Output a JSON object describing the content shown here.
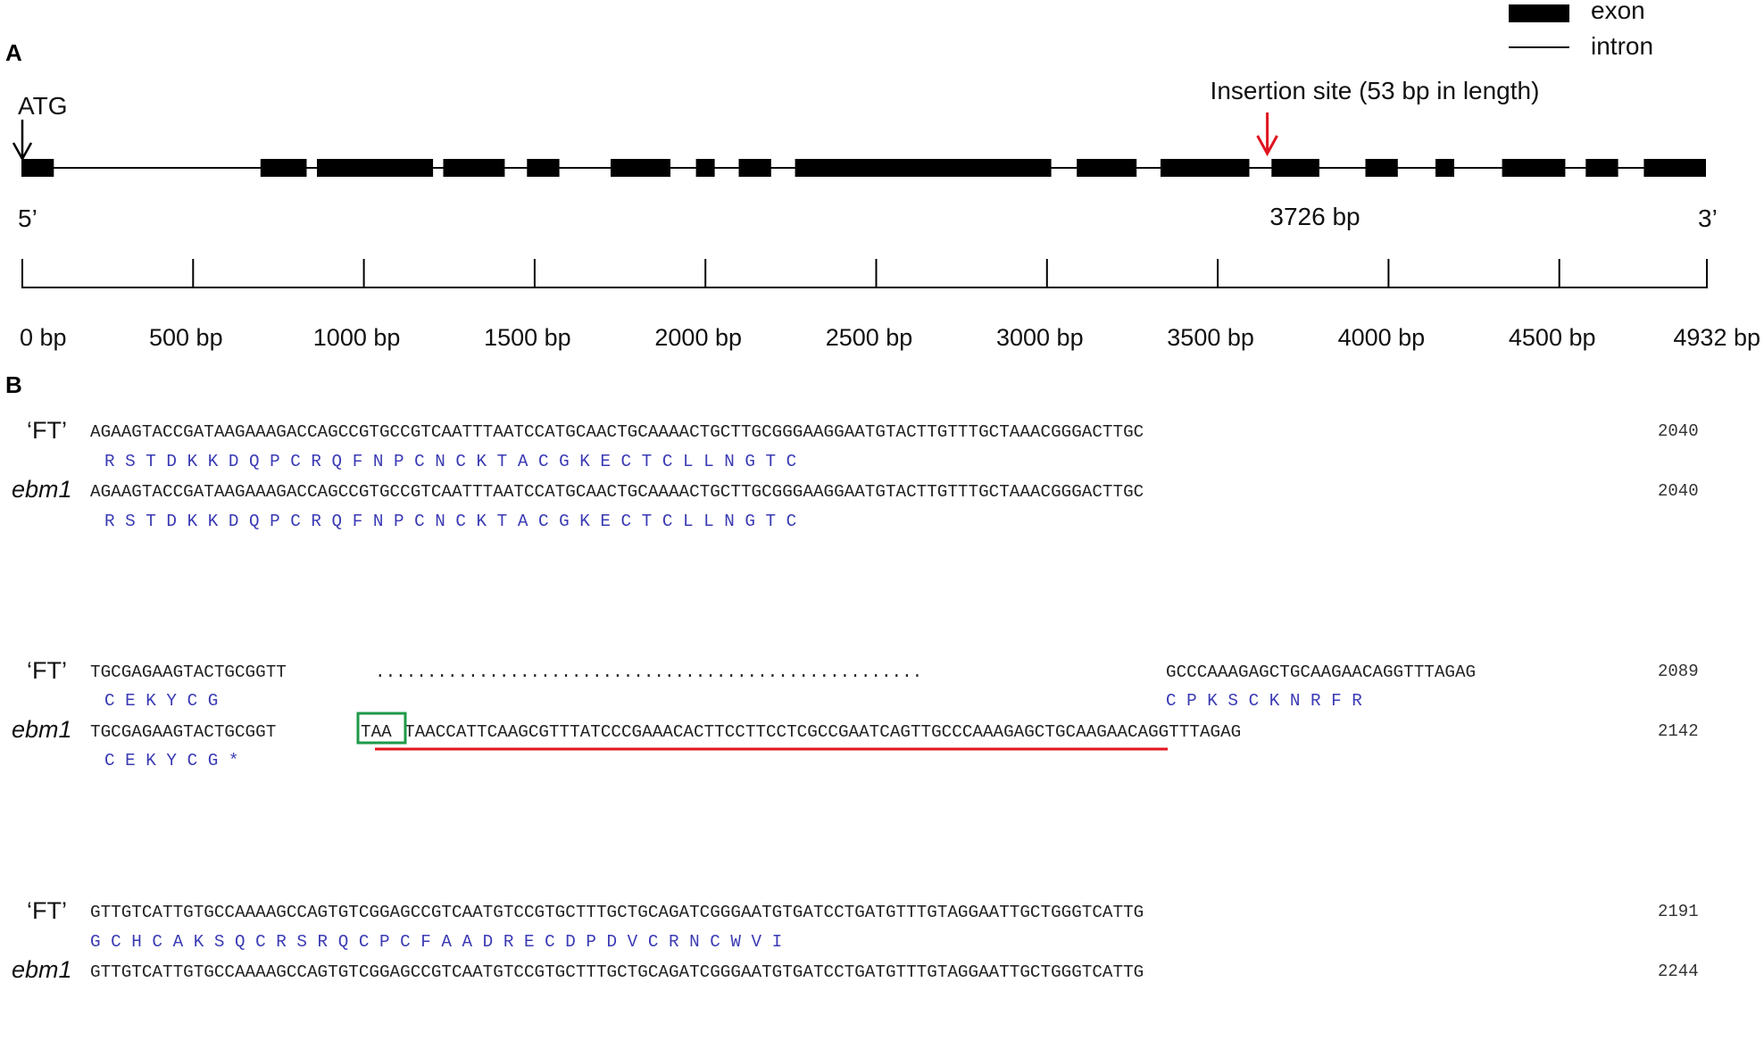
{
  "panels": {
    "a": "A",
    "b": "B"
  },
  "legend": {
    "exon": "exon",
    "intron": "intron"
  },
  "gene": {
    "atg_label": "ATG",
    "five_prime": "5’",
    "three_prime": "3’",
    "insertion_label": "Insertion site (53 bp in length)",
    "insertion_position": "3726 bp",
    "insertion_bp": 3726,
    "length_bp": 4932,
    "exons_bp": [
      [
        0,
        95
      ],
      [
        700,
        835
      ],
      [
        865,
        1205
      ],
      [
        1235,
        1415
      ],
      [
        1480,
        1575
      ],
      [
        1725,
        1900
      ],
      [
        1975,
        2030
      ],
      [
        2100,
        2195
      ],
      [
        2265,
        3015
      ],
      [
        3090,
        3265
      ],
      [
        3335,
        3595
      ],
      [
        3660,
        3800
      ],
      [
        3935,
        4030
      ],
      [
        4140,
        4195
      ],
      [
        4335,
        4520
      ],
      [
        4580,
        4675
      ],
      [
        4750,
        4932
      ]
    ]
  },
  "scale": {
    "ticks": [
      {
        "bp": 0,
        "label": "0 bp"
      },
      {
        "bp": 500,
        "label": "500 bp"
      },
      {
        "bp": 1000,
        "label": "1000 bp"
      },
      {
        "bp": 1500,
        "label": "1500 bp"
      },
      {
        "bp": 2000,
        "label": "2000 bp"
      },
      {
        "bp": 2500,
        "label": "2500 bp"
      },
      {
        "bp": 3000,
        "label": "3000 bp"
      },
      {
        "bp": 3500,
        "label": "3500 bp"
      },
      {
        "bp": 4000,
        "label": "4000 bp"
      },
      {
        "bp": 4500,
        "label": "4500 bp"
      },
      {
        "bp": 4932,
        "label": "4932 bp"
      }
    ]
  },
  "alignment": {
    "names": {
      "ft": "‘FT’",
      "ebm1": "ebm1"
    },
    "blocks": [
      {
        "ft_seq": "AGAAGTACCGATAAGAAAGACCAGCCGTGCCGTCAATTTAATCCATGCAACTGCAAAACTGCTTGCGGGAAGGAATGTACTTGTTTGCTAAACGGGACTTGC",
        "ft_num": "2040",
        "ft_aa": "R S T D K K D Q P C R Q F N P C N C K T A C G K E C T C L L N G T C",
        "ebm1_seq": "AGAAGTACCGATAAGAAAGACCAGCCGTGCCGTCAATTTAATCCATGCAACTGCAAAACTGCTTGCGGGAAGGAATGTACTTGTTTGCTAAACGGGACTTGC",
        "ebm1_num": "2040",
        "ebm1_aa": "R S T D K K D Q P C R Q F N P C N C K T A C G K E C T C L L N G T C"
      },
      {
        "ft_seq_a": "TGCGAGAAGTACTGCGGTT",
        "ft_gap": ".....................................................",
        "ft_seq_b": "GCCCAAAGAGCTGCAAGAACAGGTTTAGAG",
        "ft_num": "2089",
        "ft_aa_a": "C E K Y C G",
        "ft_aa_b": "C P K S C K N R F R",
        "ebm1_seq_a": "TGCGAGAAGTACTGCGGT",
        "ebm1_stop": "TAA",
        "ebm1_seq_b": "TAACCATTCAAGCGTTTATCCCGAAACACTTCCTTCCTCGCCGAATCAGTTGCCCAAAGAGCTGCAAGAACAGGTTTAGAG",
        "ebm1_num": "2142",
        "ebm1_aa": "C E K Y C G *"
      },
      {
        "ft_seq": "GTTGTCATTGTGCCAAAAGCCAGTGTCGGAGCCGTCAATGTCCGTGCTTTGCTGCAGATCGGGAATGTGATCCTGATGTTTGTAGGAATTGCTGGGTCATTG",
        "ft_num": "2191",
        "ft_aa": "G C H C A K S Q C R S R Q C P C F A A D R E C D P D V C R N C W V I",
        "ebm1_seq": "GTTGTCATTGTGCCAAAAGCCAGTGTCGGAGCCGTCAATGTCCGTGCTTTGCTGCAGATCGGGAATGTGATCCTGATGTTTGTAGGAATTGCTGGGTCATTG",
        "ebm1_num": "2244"
      }
    ]
  },
  "colors": {
    "exon": "#000000",
    "insertion_arrow": "#e0141e",
    "insert_underline": "#e0141e",
    "stop_box": "#1e9a48",
    "amino_acid": "#3a3ab4",
    "sequence": "#222222"
  }
}
